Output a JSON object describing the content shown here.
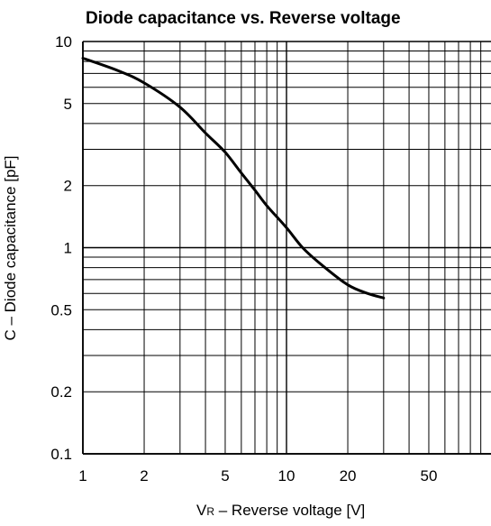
{
  "chart_data": {
    "type": "line",
    "title": "Diode capacitance vs. Reverse voltage",
    "xlabel": {
      "symbol": "V",
      "subscript": "R",
      "text": " – Reverse voltage [V]"
    },
    "ylabel": "C – Diode capacitance [pF]",
    "x_scale": "log",
    "y_scale": "log",
    "xlim": [
      1,
      100
    ],
    "ylim": [
      0.1,
      10
    ],
    "x_tick_labels": [
      "1",
      "2",
      "5",
      "10",
      "20",
      "50"
    ],
    "x_tick_values": [
      1,
      2,
      5,
      10,
      20,
      50
    ],
    "y_tick_labels": [
      "10",
      "5",
      "2",
      "1",
      "0.5",
      "0.2",
      "0.1"
    ],
    "y_tick_values": [
      10,
      5,
      2,
      1,
      0.5,
      0.2,
      0.1
    ],
    "grid": true,
    "series": [
      {
        "x": [
          1,
          1.5,
          2,
          3,
          4,
          5,
          6,
          7,
          8,
          10,
          12,
          15,
          20,
          25,
          30
        ],
        "y": [
          8.3,
          7.2,
          6.3,
          4.8,
          3.6,
          2.9,
          2.3,
          1.9,
          1.6,
          1.25,
          1.0,
          0.82,
          0.66,
          0.6,
          0.57
        ]
      }
    ],
    "colors": {
      "line": "#000000",
      "grid": "#000000"
    }
  }
}
